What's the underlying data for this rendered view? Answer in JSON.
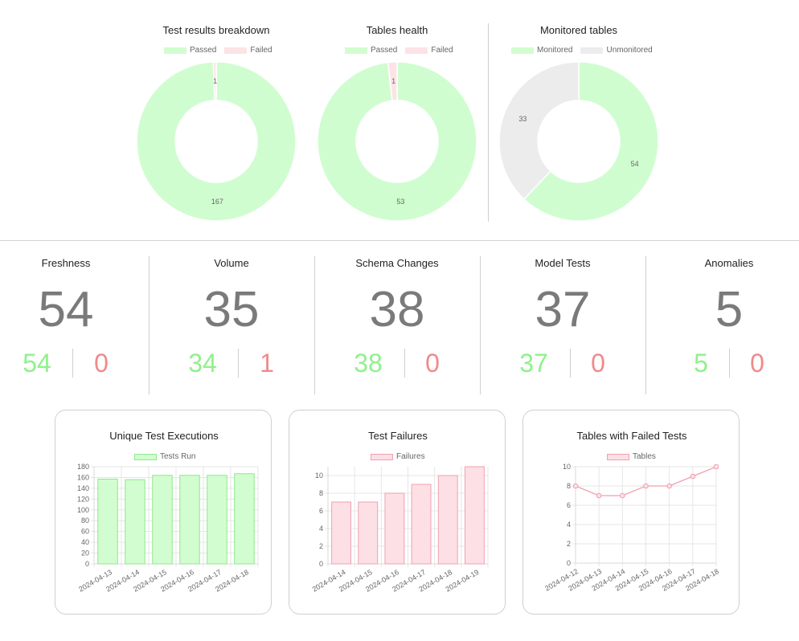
{
  "donuts": [
    {
      "title": "Test results breakdown",
      "legend": [
        {
          "label": "Passed",
          "color": "#d2fdd0",
          "border": "#d2fdd0"
        },
        {
          "label": "Failed",
          "color": "#fde3e6",
          "border": "#fde3e6"
        }
      ],
      "slices": [
        {
          "label": "Passed",
          "value": 167,
          "color": "#d0fdd0"
        },
        {
          "label": "Failed",
          "value": 1,
          "color": "#fde3e6"
        }
      ]
    },
    {
      "title": "Tables health",
      "legend": [
        {
          "label": "Passed",
          "color": "#d2fdd0",
          "border": "#d2fdd0"
        },
        {
          "label": "Failed",
          "color": "#fde3e6",
          "border": "#fde3e6"
        }
      ],
      "slices": [
        {
          "label": "Passed",
          "value": 53,
          "color": "#d0fdd0"
        },
        {
          "label": "Failed",
          "value": 1,
          "color": "#fde3e6"
        }
      ]
    },
    {
      "title": "Monitored tables",
      "legend": [
        {
          "label": "Monitored",
          "color": "#d2fdd0",
          "border": "#d2fdd0"
        },
        {
          "label": "Unmonitored",
          "color": "#ececec",
          "border": "#ececec"
        }
      ],
      "slices": [
        {
          "label": "Monitored",
          "value": 54,
          "color": "#d0fdd0"
        },
        {
          "label": "Unmonitored",
          "value": 33,
          "color": "#ececec"
        }
      ]
    }
  ],
  "stats": [
    {
      "title": "Freshness",
      "total": "54",
      "passed": "54",
      "failed": "0"
    },
    {
      "title": "Volume",
      "total": "35",
      "passed": "34",
      "failed": "1"
    },
    {
      "title": "Schema Changes",
      "total": "38",
      "passed": "38",
      "failed": "0"
    },
    {
      "title": "Model Tests",
      "total": "37",
      "passed": "37",
      "failed": "0"
    },
    {
      "title": "Anomalies",
      "total": "5",
      "passed": "5",
      "failed": "0"
    }
  ],
  "colors": {
    "pass_text": "#8ef28a",
    "fail_text": "#f08a8a",
    "total_text": "#7a7a7a"
  },
  "chart_data": [
    {
      "type": "bar",
      "title": "Unique Test Executions",
      "categories": [
        "2024-04-13",
        "2024-04-14",
        "2024-04-15",
        "2024-04-16",
        "2024-04-17",
        "2024-04-18"
      ],
      "series": [
        {
          "name": "Tests Run",
          "values": [
            157,
            156,
            164,
            164,
            164,
            167
          ],
          "fill": "#d2fdd0",
          "stroke": "#8ee88a"
        }
      ],
      "ylim": [
        0,
        180
      ],
      "yticks": [
        0,
        20,
        40,
        60,
        80,
        100,
        120,
        140,
        160,
        180
      ],
      "grid": true,
      "legend": "top"
    },
    {
      "type": "bar",
      "title": "Test Failures",
      "categories": [
        "2024-04-14",
        "2024-04-15",
        "2024-04-16",
        "2024-04-17",
        "2024-04-18",
        "2024-04-19"
      ],
      "series": [
        {
          "name": "Failures",
          "values": [
            7,
            7,
            8,
            9,
            10,
            11
          ],
          "fill": "#fde0e5",
          "stroke": "#f0a0b0"
        }
      ],
      "ylim": [
        0,
        11
      ],
      "yticks": [
        0,
        2,
        4,
        6,
        8,
        10
      ],
      "grid": true,
      "legend": "top"
    },
    {
      "type": "line",
      "title": "Tables with Failed Tests",
      "categories": [
        "2024-04-12",
        "2024-04-13",
        "2024-04-14",
        "2024-04-15",
        "2024-04-16",
        "2024-04-17",
        "2024-04-18"
      ],
      "series": [
        {
          "name": "Tables",
          "values": [
            8,
            7,
            7,
            8,
            8,
            9,
            10
          ],
          "fill": "#fde0e5",
          "stroke": "#f0a0b0"
        }
      ],
      "ylim": [
        0,
        10
      ],
      "yticks": [
        0,
        2,
        4,
        6,
        8,
        10
      ],
      "grid": true,
      "legend": "top"
    }
  ]
}
